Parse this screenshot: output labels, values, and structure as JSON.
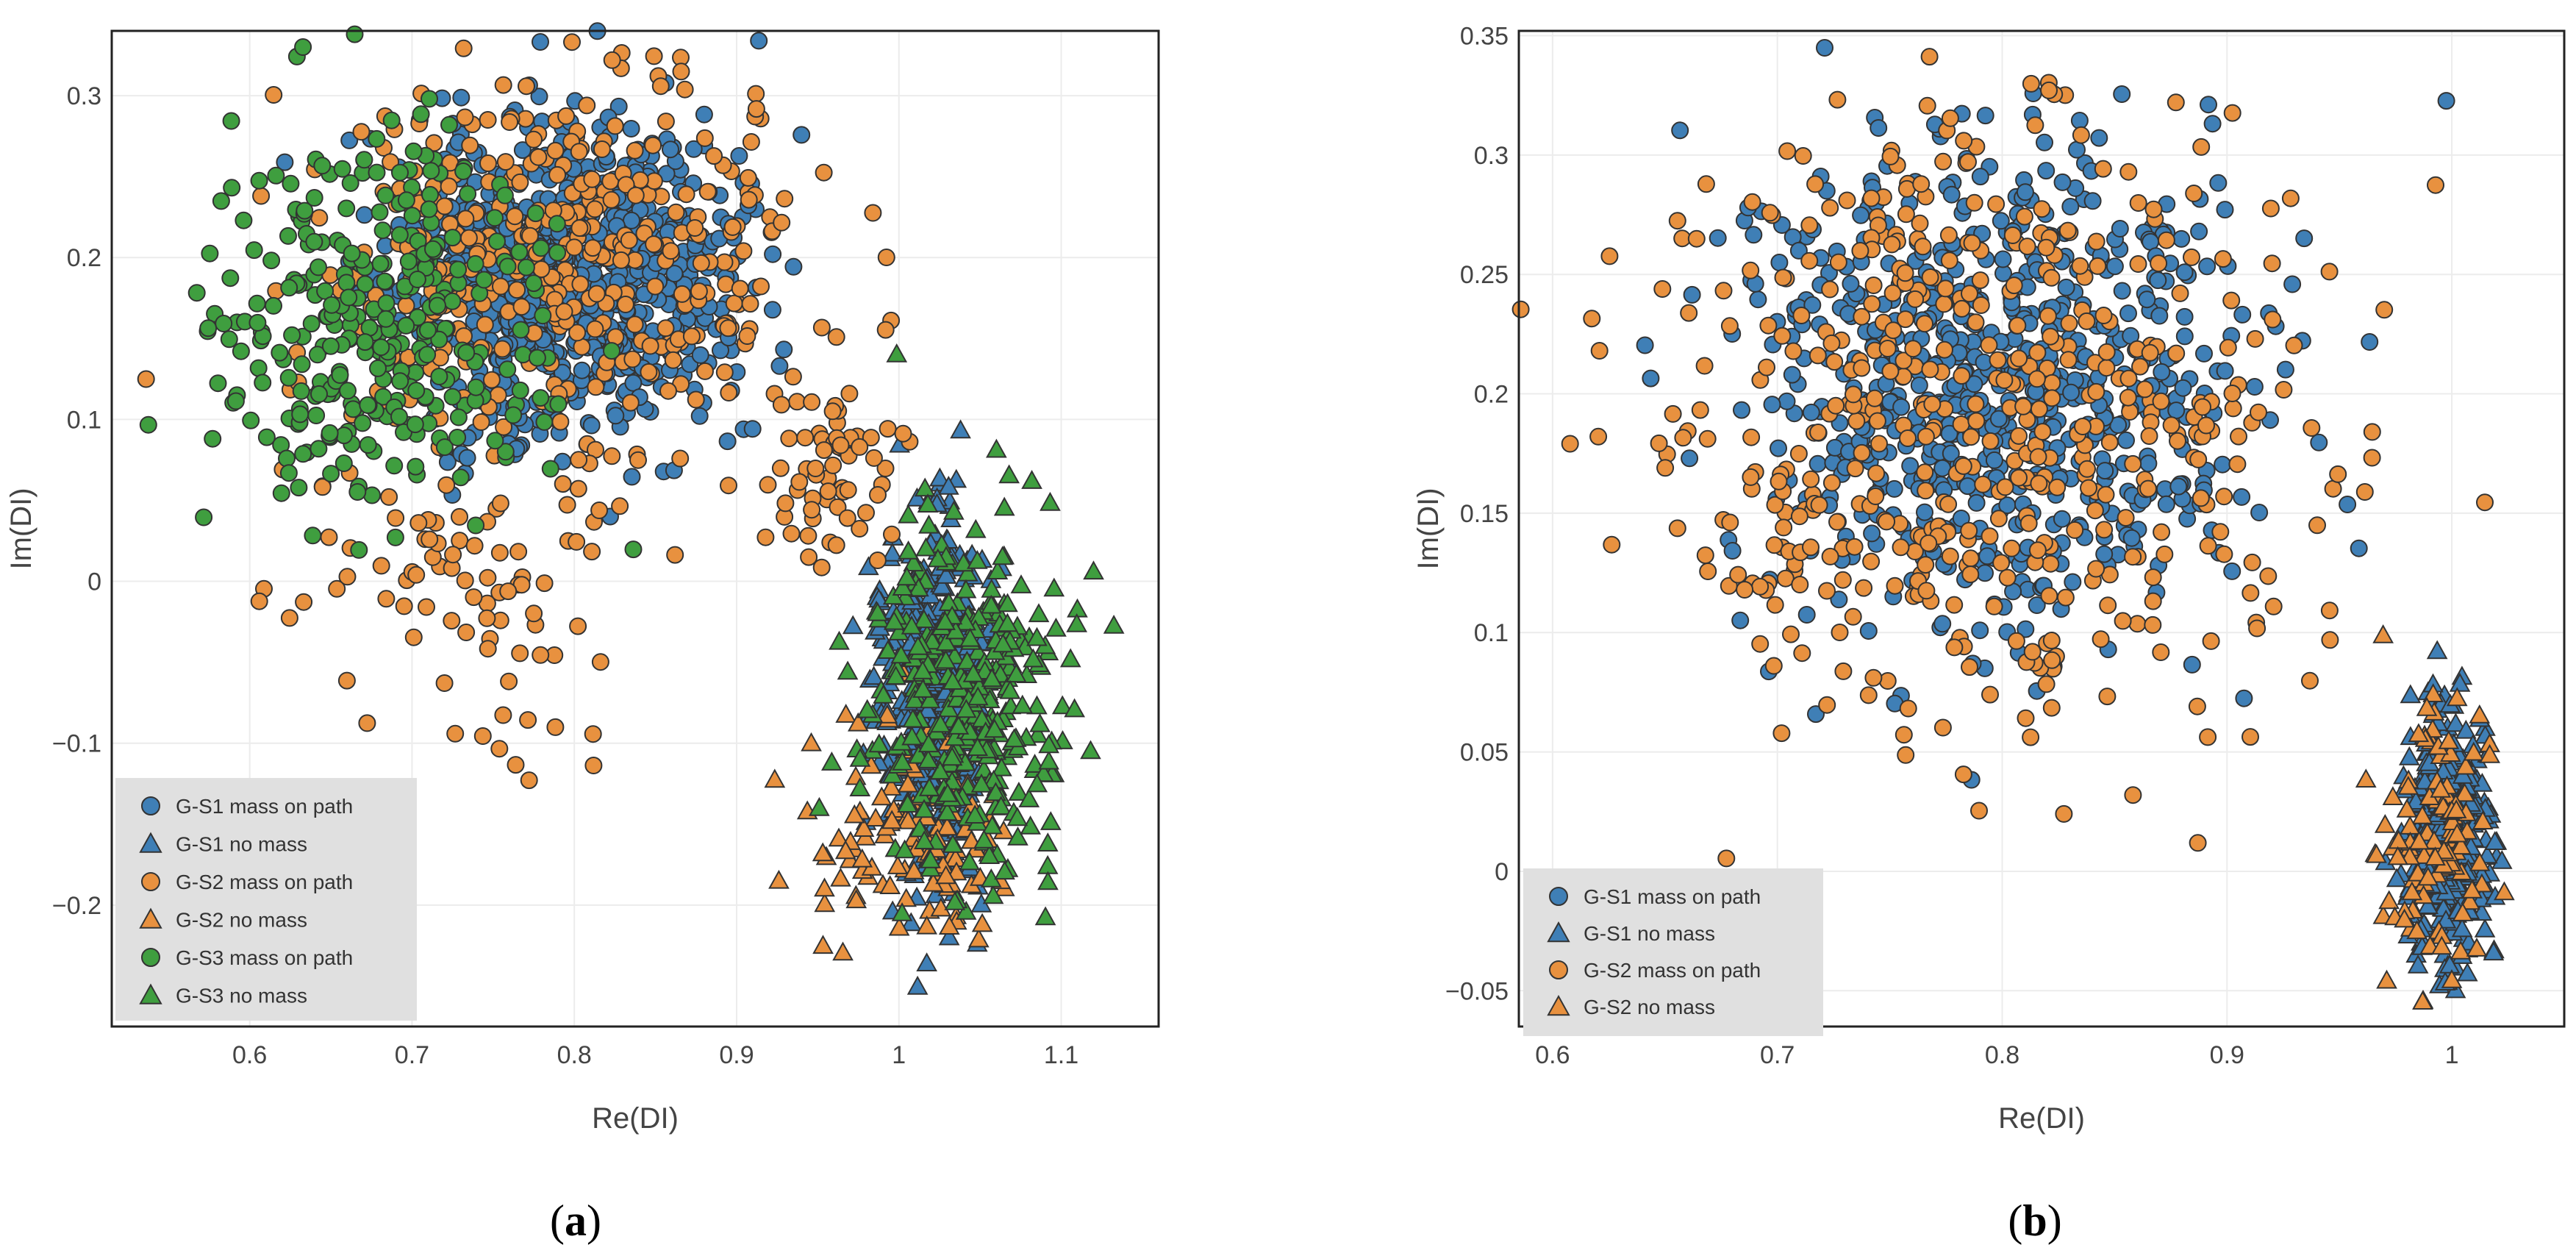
{
  "colors": {
    "gs1": "#3f7fb6",
    "gs2": "#e8913f",
    "gs3": "#3f9e3f",
    "edge": "#333333",
    "grid": "#ececec",
    "legend_bg": "#e0e0e0"
  },
  "chart_data": [
    {
      "type": "scatter",
      "panel_label": {
        "open": "(",
        "letter": "a",
        "close": ")"
      },
      "title": "",
      "xlabel": "Re(DI)",
      "ylabel": "Im(DI)",
      "xlim": [
        0.515,
        1.16
      ],
      "ylim": [
        -0.275,
        0.34
      ],
      "xticks": [
        0.6,
        0.7,
        0.8,
        0.9,
        1.0,
        1.1
      ],
      "xtick_labels": [
        "0.6",
        "0.7",
        "0.8",
        "0.9",
        "1",
        "1.1"
      ],
      "yticks": [
        -0.2,
        -0.1,
        0,
        0.1,
        0.2,
        0.3
      ],
      "ytick_labels": [
        "−0.2",
        "−0.1",
        "0",
        "0.1",
        "0.2",
        "0.3"
      ],
      "legend_position": "bottom-left",
      "series": [
        {
          "name": "G-S1 mass on path",
          "color_key": "gs1",
          "marker": "circle",
          "clusters": [
            {
              "cx": 0.795,
              "cy": 0.19,
              "sx": 0.05,
              "sy": 0.048,
              "n": 800
            }
          ]
        },
        {
          "name": "G-S1 no mass",
          "color_key": "gs1",
          "marker": "triangle",
          "clusters": [
            {
              "cx": 1.02,
              "cy": -0.07,
              "sx": 0.018,
              "sy": 0.055,
              "n": 450
            }
          ]
        },
        {
          "name": "G-S2 mass on path",
          "color_key": "gs2",
          "marker": "circle",
          "clusters": [
            {
              "cx": 0.8,
              "cy": 0.2,
              "sx": 0.08,
              "sy": 0.06,
              "n": 380
            },
            {
              "cx": 0.72,
              "cy": 0.01,
              "sx": 0.05,
              "sy": 0.04,
              "n": 80
            },
            {
              "cx": 0.96,
              "cy": 0.07,
              "sx": 0.02,
              "sy": 0.03,
              "n": 60
            },
            {
              "cx": 0.76,
              "cy": -0.09,
              "sx": 0.04,
              "sy": 0.02,
              "n": 10
            }
          ]
        },
        {
          "name": "G-S2 no mass",
          "color_key": "gs2",
          "marker": "triangle",
          "clusters": [
            {
              "cx": 1.01,
              "cy": -0.16,
              "sx": 0.03,
              "sy": 0.035,
              "n": 120
            }
          ]
        },
        {
          "name": "G-S3 mass on path",
          "color_key": "gs3",
          "marker": "circle",
          "clusters": [
            {
              "cx": 0.68,
              "cy": 0.16,
              "sx": 0.055,
              "sy": 0.06,
              "n": 320
            }
          ]
        },
        {
          "name": "G-S3 no mass",
          "color_key": "gs3",
          "marker": "triangle",
          "clusters": [
            {
              "cx": 1.04,
              "cy": -0.07,
              "sx": 0.03,
              "sy": 0.055,
              "n": 350
            }
          ]
        }
      ]
    },
    {
      "type": "scatter",
      "panel_label": {
        "open": "(",
        "letter": "b",
        "close": ")"
      },
      "title": "",
      "xlabel": "Re(DI)",
      "ylabel": "Im(DI)",
      "xlim": [
        0.585,
        1.05
      ],
      "ylim": [
        -0.065,
        0.352
      ],
      "xticks": [
        0.6,
        0.7,
        0.8,
        0.9,
        1.0
      ],
      "xtick_labels": [
        "0.6",
        "0.7",
        "0.8",
        "0.9",
        "1"
      ],
      "yticks": [
        -0.05,
        0,
        0.05,
        0.1,
        0.15,
        0.2,
        0.25,
        0.3,
        0.35
      ],
      "ytick_labels": [
        "−0.05",
        "0",
        "0.05",
        "0.1",
        "0.15",
        "0.2",
        "0.25",
        "0.3",
        "0.35"
      ],
      "legend_position": "bottom-left",
      "series": [
        {
          "name": "G-S1 mass on path",
          "color_key": "gs1",
          "marker": "circle",
          "clusters": [
            {
              "cx": 0.8,
              "cy": 0.2,
              "sx": 0.055,
              "sy": 0.05,
              "n": 700
            }
          ]
        },
        {
          "name": "G-S1 no mass",
          "color_key": "gs1",
          "marker": "triangle",
          "clusters": [
            {
              "cx": 0.998,
              "cy": 0.016,
              "sx": 0.01,
              "sy": 0.025,
              "n": 350
            }
          ]
        },
        {
          "name": "G-S2 mass on path",
          "color_key": "gs2",
          "marker": "circle",
          "clusters": [
            {
              "cx": 0.79,
              "cy": 0.19,
              "sx": 0.075,
              "sy": 0.065,
              "n": 520
            }
          ]
        },
        {
          "name": "G-S2 no mass",
          "color_key": "gs2",
          "marker": "triangle",
          "clusters": [
            {
              "cx": 0.993,
              "cy": 0.012,
              "sx": 0.012,
              "sy": 0.028,
              "n": 110
            }
          ]
        }
      ]
    }
  ]
}
